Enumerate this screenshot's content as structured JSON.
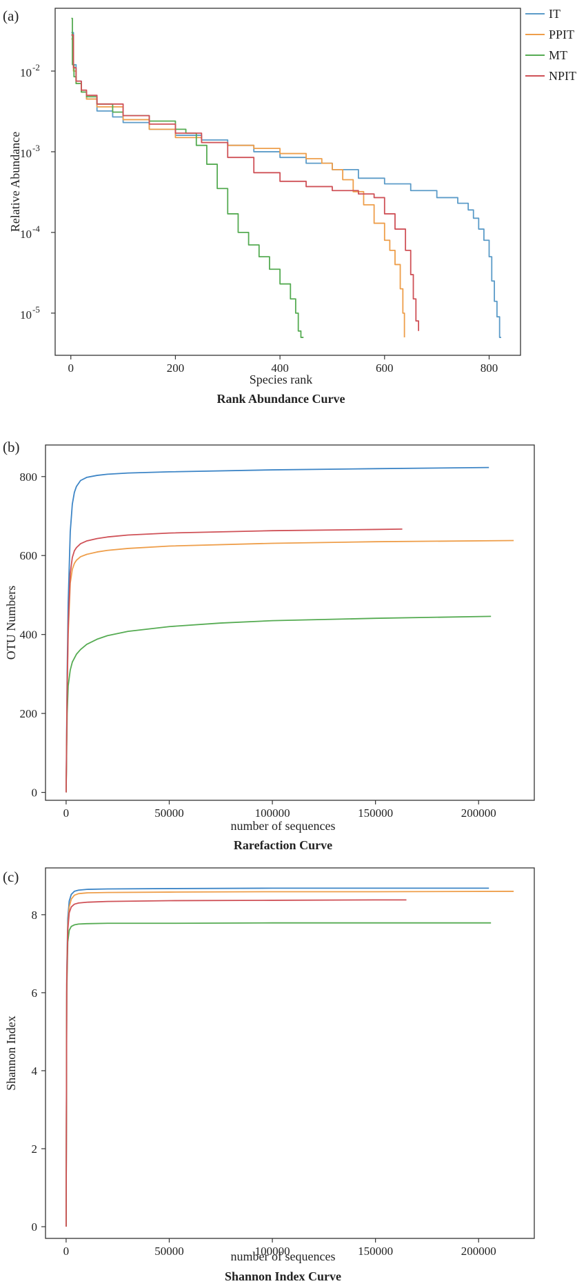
{
  "chart_data": [
    {
      "type": "line",
      "panel_label": "(a)",
      "title": "Rank  Abundance Curve",
      "xlabel": "Species rank",
      "ylabel": "Relative Abundance",
      "yscale": "log",
      "xlim": [
        -30,
        860
      ],
      "ylim": [
        3e-06,
        0.06
      ],
      "xticks": [
        0,
        200,
        400,
        600,
        800
      ],
      "xtick_labels": [
        "0",
        "200",
        "400",
        "600",
        "800"
      ],
      "yticks": [
        1e-05,
        0.0001,
        0.001,
        0.01
      ],
      "ytick_labels": [
        {
          "base": "10",
          "exp": "-5"
        },
        {
          "base": "10",
          "exp": "-4"
        },
        {
          "base": "10",
          "exp": "-3"
        },
        {
          "base": "10",
          "exp": "-2"
        }
      ],
      "legend": {
        "position": "top-right-outside"
      },
      "series": [
        {
          "name": "IT",
          "color": "#5b9bc8",
          "x": [
            1,
            5,
            10,
            20,
            30,
            50,
            80,
            100,
            150,
            200,
            250,
            300,
            350,
            400,
            450,
            500,
            550,
            600,
            650,
            700,
            740,
            760,
            770,
            780,
            790,
            800,
            805,
            810,
            815,
            820,
            823
          ],
          "y": [
            0.03,
            0.012,
            0.0075,
            0.0055,
            0.0045,
            0.0032,
            0.0027,
            0.0023,
            0.0019,
            0.0016,
            0.0014,
            0.0012,
            0.001,
            0.00085,
            0.00072,
            0.0006,
            0.00047,
            0.0004,
            0.00033,
            0.00027,
            0.00023,
            0.00019,
            0.00015,
            0.00011,
            8e-05,
            5e-05,
            2.5e-05,
            1.4e-05,
            9e-06,
            5e-06,
            5e-06
          ]
        },
        {
          "name": "PPIT",
          "color": "#ee9e4a",
          "x": [
            1,
            5,
            10,
            20,
            30,
            50,
            100,
            150,
            200,
            250,
            300,
            350,
            400,
            450,
            480,
            500,
            520,
            540,
            560,
            580,
            600,
            610,
            620,
            630,
            635,
            638
          ],
          "y": [
            0.025,
            0.01,
            0.007,
            0.0055,
            0.0045,
            0.0036,
            0.0025,
            0.0019,
            0.0015,
            0.0013,
            0.0012,
            0.0011,
            0.00095,
            0.00082,
            0.00072,
            0.0006,
            0.00045,
            0.00032,
            0.00022,
            0.00013,
            8e-05,
            6e-05,
            4e-05,
            2e-05,
            1e-05,
            5e-06
          ]
        },
        {
          "name": "MT",
          "color": "#55ab52",
          "x": [
            1,
            3,
            6,
            10,
            20,
            30,
            50,
            80,
            100,
            150,
            200,
            220,
            240,
            260,
            280,
            300,
            320,
            340,
            360,
            380,
            400,
            420,
            430,
            435,
            440,
            445
          ],
          "y": [
            0.045,
            0.012,
            0.0085,
            0.007,
            0.0055,
            0.0048,
            0.0039,
            0.0031,
            0.0028,
            0.0024,
            0.0019,
            0.0017,
            0.0012,
            0.0007,
            0.00035,
            0.00017,
            0.0001,
            7e-05,
            5e-05,
            3.5e-05,
            2.3e-05,
            1.5e-05,
            1e-05,
            6e-06,
            5e-06,
            5e-06
          ]
        },
        {
          "name": "NPIT",
          "color": "#cf5157",
          "x": [
            1,
            5,
            10,
            20,
            30,
            50,
            100,
            150,
            200,
            250,
            300,
            350,
            400,
            450,
            500,
            550,
            580,
            600,
            620,
            640,
            650,
            655,
            660,
            665
          ],
          "y": [
            0.028,
            0.011,
            0.0075,
            0.0058,
            0.005,
            0.0039,
            0.0028,
            0.0022,
            0.0017,
            0.0013,
            0.00085,
            0.00055,
            0.00043,
            0.00037,
            0.00033,
            0.0003,
            0.00027,
            0.00017,
            0.00011,
            6e-05,
            3e-05,
            1.5e-05,
            8e-06,
            6e-06
          ]
        }
      ]
    },
    {
      "type": "line",
      "panel_label": "(b)",
      "title": "Rarefaction Curve",
      "xlabel": "number of sequences",
      "ylabel": "OTU Numbers",
      "xlim": [
        -10000,
        227000
      ],
      "ylim": [
        -20,
        880
      ],
      "xticks": [
        0,
        50000,
        100000,
        150000,
        200000
      ],
      "yticks": [
        0,
        200,
        400,
        600,
        800
      ],
      "series": [
        {
          "name": "IT",
          "color": "#3d85c6",
          "x": [
            0,
            500,
            1000,
            2000,
            3000,
            4000,
            5000,
            7000,
            10000,
            15000,
            20000,
            30000,
            50000,
            100000,
            150000,
            205000
          ],
          "y": [
            0,
            300,
            480,
            660,
            730,
            760,
            775,
            790,
            798,
            803,
            806,
            809,
            812,
            817,
            820,
            823
          ]
        },
        {
          "name": "PPIT",
          "color": "#ee9e4a",
          "x": [
            0,
            500,
            1000,
            2000,
            3000,
            4000,
            5000,
            7000,
            10000,
            15000,
            20000,
            30000,
            50000,
            100000,
            150000,
            217000
          ],
          "y": [
            0,
            250,
            400,
            530,
            565,
            580,
            588,
            597,
            603,
            609,
            613,
            618,
            624,
            631,
            635,
            638
          ]
        },
        {
          "name": "MT",
          "color": "#55ab52",
          "x": [
            0,
            500,
            1000,
            2000,
            3000,
            5000,
            7000,
            10000,
            15000,
            20000,
            30000,
            50000,
            75000,
            100000,
            150000,
            206000
          ],
          "y": [
            0,
            200,
            270,
            310,
            330,
            350,
            362,
            375,
            388,
            397,
            408,
            420,
            429,
            435,
            441,
            446
          ]
        },
        {
          "name": "NPIT",
          "color": "#cf5157",
          "x": [
            0,
            500,
            1000,
            2000,
            3000,
            4000,
            5000,
            7000,
            10000,
            15000,
            20000,
            30000,
            50000,
            100000,
            150000,
            163000
          ],
          "y": [
            0,
            260,
            420,
            555,
            595,
            612,
            620,
            630,
            637,
            643,
            647,
            652,
            657,
            663,
            666,
            667
          ]
        }
      ]
    },
    {
      "type": "line",
      "panel_label": "(c)",
      "title": "Shannon Index Curve",
      "xlabel": "number of sequences",
      "ylabel": "Shannon Index",
      "xlim": [
        -10000,
        227000
      ],
      "ylim": [
        -0.3,
        9.2
      ],
      "xticks": [
        0,
        50000,
        100000,
        150000,
        200000
      ],
      "yticks": [
        0,
        2,
        4,
        6,
        8
      ],
      "series": [
        {
          "name": "IT",
          "color": "#3d85c6",
          "x": [
            0,
            300,
            800,
            1500,
            2500,
            4000,
            6000,
            10000,
            20000,
            50000,
            100000,
            150000,
            205000
          ],
          "y": [
            0,
            6.5,
            7.9,
            8.35,
            8.52,
            8.6,
            8.63,
            8.65,
            8.66,
            8.67,
            8.68,
            8.68,
            8.68
          ]
        },
        {
          "name": "PPIT",
          "color": "#ee9e4a",
          "x": [
            0,
            300,
            800,
            1500,
            2500,
            4000,
            6000,
            10000,
            20000,
            50000,
            100000,
            150000,
            217000
          ],
          "y": [
            0,
            6.3,
            7.7,
            8.2,
            8.4,
            8.5,
            8.54,
            8.56,
            8.57,
            8.58,
            8.59,
            8.59,
            8.6
          ]
        },
        {
          "name": "MT",
          "color": "#55ab52",
          "x": [
            0,
            300,
            800,
            1500,
            2500,
            4000,
            6000,
            10000,
            20000,
            50000,
            100000,
            150000,
            206000
          ],
          "y": [
            0,
            6.0,
            7.3,
            7.6,
            7.7,
            7.74,
            7.76,
            7.77,
            7.78,
            7.78,
            7.79,
            7.79,
            7.79
          ]
        },
        {
          "name": "NPIT",
          "color": "#cf5157",
          "x": [
            0,
            300,
            800,
            1500,
            2500,
            4000,
            6000,
            10000,
            20000,
            50000,
            100000,
            150000,
            165000
          ],
          "y": [
            0,
            6.2,
            7.6,
            8.05,
            8.2,
            8.27,
            8.3,
            8.32,
            8.34,
            8.36,
            8.37,
            8.38,
            8.38
          ]
        }
      ]
    }
  ]
}
